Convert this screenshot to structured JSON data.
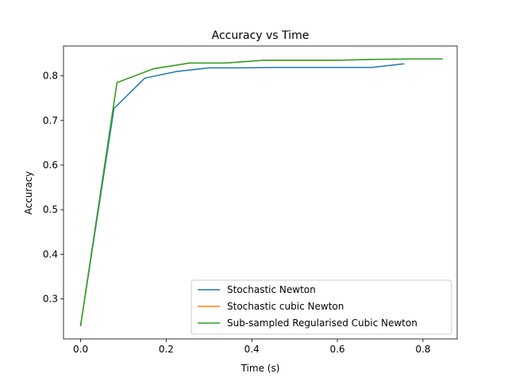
{
  "chart_data": {
    "type": "line",
    "title": "Accuracy vs Time",
    "xlabel": "Time (s)",
    "ylabel": "Accuracy",
    "xlim": [
      -0.04,
      0.88
    ],
    "ylim": [
      0.21,
      0.867
    ],
    "xticks": [
      0.0,
      0.2,
      0.4,
      0.6,
      0.8
    ],
    "xtick_labels": [
      "0.0",
      "0.2",
      "0.4",
      "0.6",
      "0.8"
    ],
    "yticks": [
      0.3,
      0.4,
      0.5,
      0.6,
      0.7,
      0.8
    ],
    "ytick_labels": [
      "0.3",
      "0.4",
      "0.5",
      "0.6",
      "0.7",
      "0.8"
    ],
    "grid": false,
    "legend_position": "lower-right",
    "series": [
      {
        "name": "Stochastic Newton",
        "color": "#1f77b4",
        "x": [
          0.0,
          0.078,
          0.15,
          0.225,
          0.3,
          0.375,
          0.45,
          0.525,
          0.6,
          0.68,
          0.755
        ],
        "y": [
          0.24,
          0.727,
          0.795,
          0.81,
          0.818,
          0.818,
          0.819,
          0.819,
          0.819,
          0.819,
          0.827
        ]
      },
      {
        "name": "Stochastic cubic Newton",
        "color": "#ff7f0e",
        "x": [
          0.0,
          0.085,
          0.17,
          0.255,
          0.34,
          0.425,
          0.51,
          0.595,
          0.68,
          0.765,
          0.845
        ],
        "y": [
          0.24,
          0.785,
          0.816,
          0.829,
          0.829,
          0.835,
          0.835,
          0.835,
          0.837,
          0.838,
          0.838
        ]
      },
      {
        "name": "Sub-sampled Regularised Cubic Newton",
        "color": "#2ca02c",
        "x": [
          0.0,
          0.085,
          0.17,
          0.255,
          0.34,
          0.425,
          0.51,
          0.595,
          0.68,
          0.765,
          0.845
        ],
        "y": [
          0.24,
          0.785,
          0.816,
          0.829,
          0.829,
          0.835,
          0.835,
          0.835,
          0.837,
          0.838,
          0.838
        ]
      }
    ]
  }
}
